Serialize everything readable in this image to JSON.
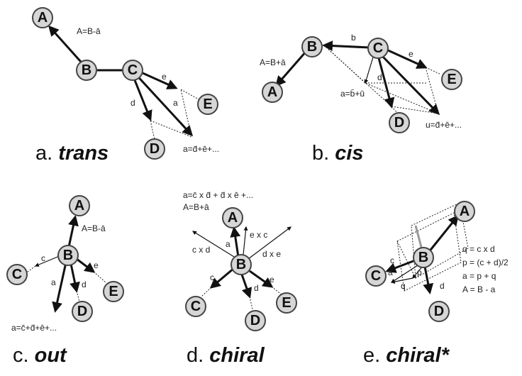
{
  "panels": [
    {
      "id": "a",
      "caption_prefix": "a. ",
      "caption_emph": "trans",
      "nodes": [
        "A",
        "B",
        "C",
        "D",
        "E"
      ],
      "edge_labels": [
        "d",
        "a",
        "e"
      ],
      "equations": [
        "A=B-ā",
        "a=d̄+ē+..."
      ]
    },
    {
      "id": "b",
      "caption_prefix": "b. ",
      "caption_emph": "cis",
      "nodes": [
        "A",
        "B",
        "C",
        "D",
        "E"
      ],
      "edge_labels": [
        "b",
        "d",
        "e"
      ],
      "equations": [
        "A=B+ā",
        "a=b̄+ū",
        "u=d̄+ē+..."
      ]
    },
    {
      "id": "c",
      "caption_prefix": "c. ",
      "caption_emph": "out",
      "nodes": [
        "A",
        "B",
        "C",
        "D",
        "E"
      ],
      "edge_labels": [
        "c",
        "a",
        "d",
        "e"
      ],
      "equations": [
        "A=B-ā",
        "a=c̄+d̄+ē+..."
      ]
    },
    {
      "id": "d",
      "caption_prefix": "d. ",
      "caption_emph": "chiral",
      "nodes": [
        "A",
        "B",
        "C",
        "D",
        "E"
      ],
      "edge_labels": [
        "a",
        "c",
        "d",
        "e",
        "c x d",
        "e x c",
        "d x e"
      ],
      "equations": [
        "a=c̄ x d̄ + d̄ x ē +...",
        "A=B+ā"
      ]
    },
    {
      "id": "e",
      "caption_prefix": "e. ",
      "caption_emph": "chiral*",
      "nodes": [
        "A",
        "B",
        "C",
        "D"
      ],
      "edge_labels": [
        "c",
        "a",
        "p",
        "q",
        "d"
      ],
      "equations": [
        "q = c x d",
        "p = (c + d)/2",
        "a = p + q",
        "A = B - a"
      ]
    }
  ]
}
